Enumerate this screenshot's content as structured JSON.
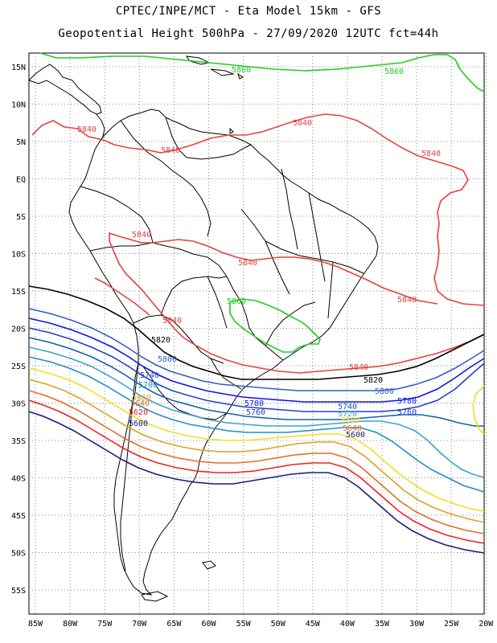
{
  "header": {
    "line1": "CPTEC/INPE/MCT -  Eta Model 15km - GFS",
    "line2": "Geopotential Height 500hPa - 27/09/2020 12UTC fct=44h"
  },
  "map": {
    "lon_ticks": [
      "85W",
      "80W",
      "75W",
      "70W",
      "65W",
      "60W",
      "55W",
      "50W",
      "45W",
      "40W",
      "35W",
      "30W",
      "25W",
      "20W"
    ],
    "lat_ticks": [
      "15N",
      "10N",
      "5N",
      "EQ",
      "5S",
      "10S",
      "15S",
      "20S",
      "25S",
      "30S",
      "35S",
      "40S",
      "45S",
      "50S",
      "55S"
    ],
    "grid": "dotted",
    "contour_colors": {
      "5560": "#000066",
      "5600": "#1a1a80",
      "5620": "#ee2222",
      "5640": "#e07020",
      "5660": "#e0a020",
      "5680": "#f0e020",
      "5700": "#2090c0",
      "5720": "#40a0d0",
      "5740": "#1060b0",
      "5760": "#2040d0",
      "5780": "#1010f0",
      "5800": "#3060c0",
      "5820": "#000000",
      "5840": "#e84040",
      "5860": "#22cc22"
    },
    "contour_labels": [
      {
        "text": "5860",
        "key": "5860"
      },
      {
        "text": "5860",
        "key": "5860"
      },
      {
        "text": "5840",
        "key": "5840"
      },
      {
        "text": "5840",
        "key": "5840"
      },
      {
        "text": "5840",
        "key": "5840"
      },
      {
        "text": "5840",
        "key": "5840"
      },
      {
        "text": "5840",
        "key": "5840"
      },
      {
        "text": "5840",
        "key": "5840"
      },
      {
        "text": "5840",
        "key": "5840"
      },
      {
        "text": "5860",
        "key": "5860"
      },
      {
        "text": "5840",
        "key": "5840"
      },
      {
        "text": "5820",
        "key": "5820"
      },
      {
        "text": "5800",
        "key": "5800"
      },
      {
        "text": "5740",
        "key": "5740"
      },
      {
        "text": "5700",
        "key": "5700"
      },
      {
        "text": "5660",
        "key": "5660"
      },
      {
        "text": "5640",
        "key": "5640"
      },
      {
        "text": "5620",
        "key": "5620"
      },
      {
        "text": "5600",
        "key": "5600"
      },
      {
        "text": "5840",
        "key": "5840"
      },
      {
        "text": "5820",
        "key": "5820"
      },
      {
        "text": "5800",
        "key": "5800"
      },
      {
        "text": "5780",
        "key": "5780"
      },
      {
        "text": "5760",
        "key": "5760"
      },
      {
        "text": "5780",
        "key": "5780"
      },
      {
        "text": "5740",
        "key": "5740"
      },
      {
        "text": "5760",
        "key": "5760"
      },
      {
        "text": "5720",
        "key": "5720"
      },
      {
        "text": "5680",
        "key": "5680"
      },
      {
        "text": "5640",
        "key": "5640"
      },
      {
        "text": "5600",
        "key": "5600"
      }
    ]
  }
}
